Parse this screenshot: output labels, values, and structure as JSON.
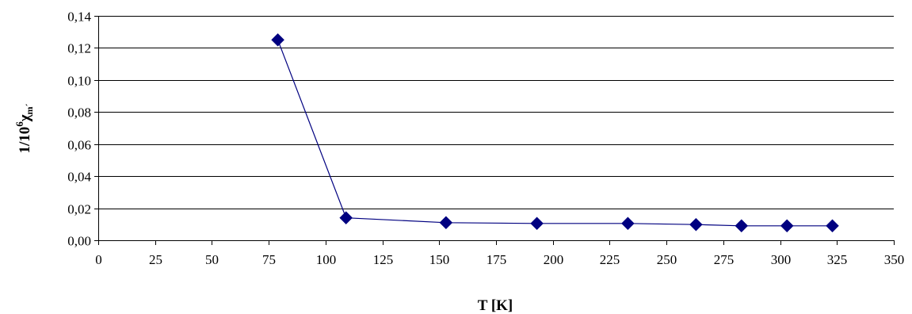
{
  "chart_data": {
    "type": "line",
    "title": "",
    "xlabel": "T [K]",
    "ylabel": {
      "prefix": "1/10",
      "exponent": "6",
      "symbol": "χ",
      "subscript": "m´"
    },
    "xlim": [
      0,
      350
    ],
    "ylim": [
      0,
      0.14
    ],
    "x_ticks": [
      0,
      25,
      50,
      75,
      100,
      125,
      150,
      175,
      200,
      225,
      250,
      275,
      300,
      325,
      350
    ],
    "x_tick_labels": [
      "0",
      "25",
      "50",
      "75",
      "100",
      "125",
      "150",
      "175",
      "200",
      "225",
      "250",
      "275",
      "300",
      "325",
      "350"
    ],
    "y_ticks": [
      0,
      0.02,
      0.04,
      0.06,
      0.08,
      0.1,
      0.12,
      0.14
    ],
    "y_tick_labels": [
      "0,00",
      "0,02",
      "0,04",
      "0,06",
      "0,08",
      "0,10",
      "0,12",
      "0,14"
    ],
    "grid": "horizontal",
    "legend": "none",
    "series": [
      {
        "color": "#000080",
        "marker": "diamond",
        "x": [
          79,
          109,
          153,
          193,
          233,
          263,
          283,
          303,
          323
        ],
        "y": [
          0.125,
          0.014,
          0.011,
          0.0105,
          0.0105,
          0.0098,
          0.009,
          0.009,
          0.009
        ]
      }
    ]
  }
}
